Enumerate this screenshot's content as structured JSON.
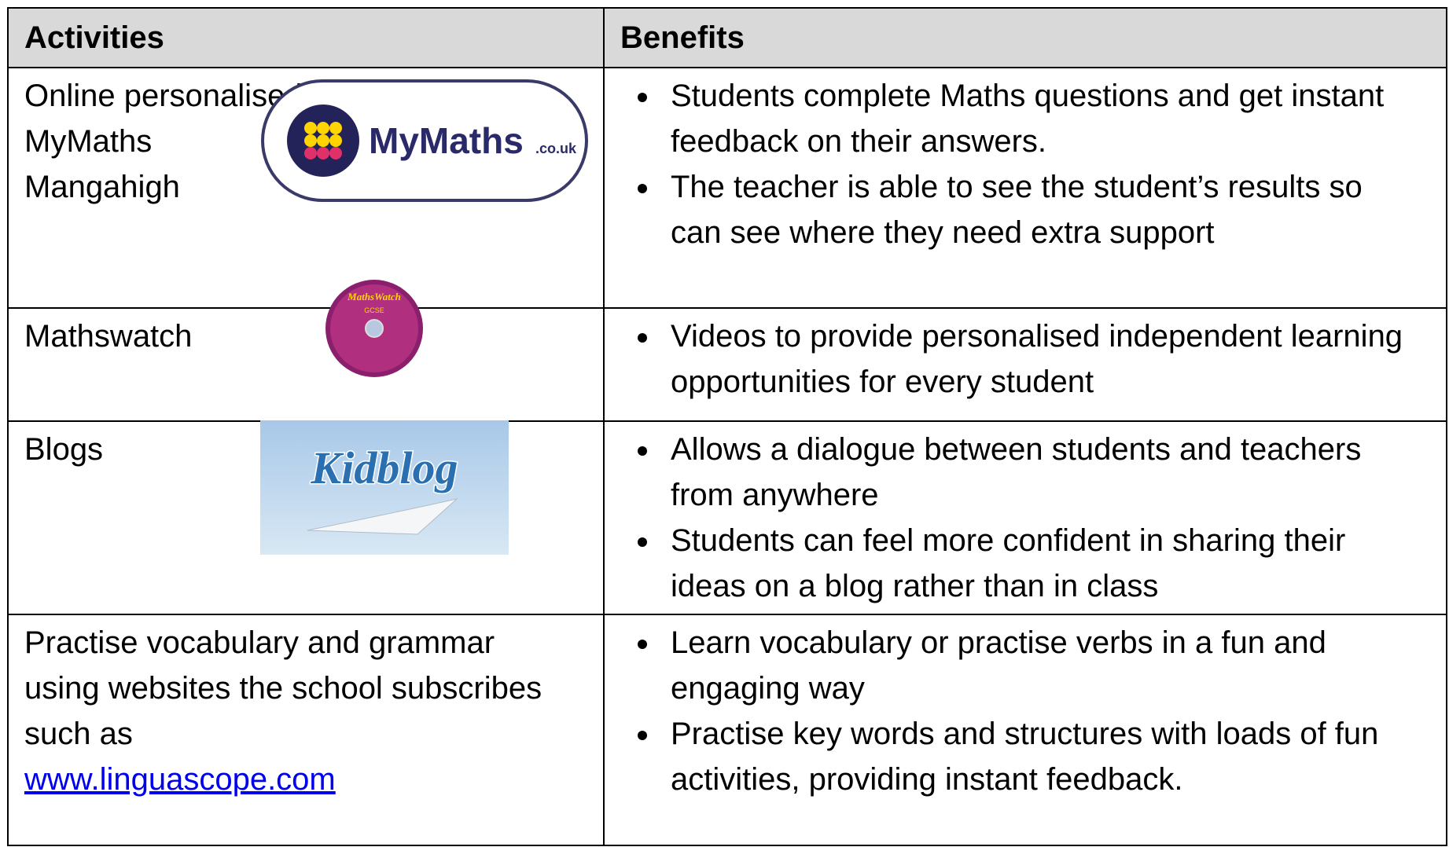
{
  "table": {
    "header": [
      "Activities",
      "Benefits"
    ],
    "rows": [
      {
        "activity": [
          "Online personalised resources:",
          "MyMaths",
          "Mangahigh"
        ],
        "benefits": [
          "Students complete Maths questions and get instant feedback on their answers.",
          "The teacher is able to see the student’s results so can see where they need extra support"
        ]
      },
      {
        "activity": [
          "Mathswatch"
        ],
        "benefits": [
          "Videos to provide personalised independent learning opportunities for every student"
        ]
      },
      {
        "activity": [
          "Blogs"
        ],
        "benefits": [
          "Allows a dialogue between students and teachers from anywhere",
          "Students can feel more confident in sharing their ideas on a blog rather than in class"
        ]
      },
      {
        "activity": [
          "Practise vocabulary and grammar using websites the school subscribes such as"
        ],
        "link": "www.linguascope.com",
        "benefits": [
          "Learn vocabulary or practise verbs in a fun and engaging way",
          "Practise key words and structures with loads of fun activities, providing instant feedback."
        ]
      }
    ]
  },
  "logos": {
    "mymaths": {
      "name": "MyMaths",
      "domain": ".co.uk"
    },
    "mathswatch": {
      "name": "MathsWatch",
      "label": "GCSE"
    },
    "kidblog": {
      "name": "Kidblog"
    }
  }
}
